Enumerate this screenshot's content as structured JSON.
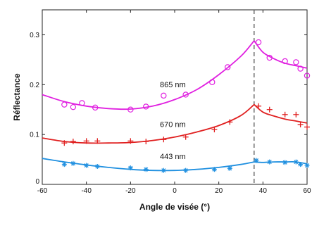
{
  "chart_data": {
    "type": "scatter",
    "title": "",
    "xlabel": "Angle de visée (°)",
    "ylabel": "Réflectance",
    "xlim": [
      -60,
      60
    ],
    "ylim": [
      0,
      0.35
    ],
    "xticks": [
      -60,
      -40,
      -20,
      0,
      20,
      40,
      60
    ],
    "yticks": [
      0.1,
      0.2,
      0.3
    ],
    "xtick_labels": [
      "-60",
      "-40",
      "-20",
      "0",
      "20",
      "40",
      "60"
    ],
    "ytick_labels": [
      "0.1",
      "0.2",
      "0.3"
    ],
    "y_zero_label": "0",
    "grid": false,
    "legend": "none",
    "reference_line_x": 36,
    "series": [
      {
        "name": "865 nm",
        "color": "#e020e0",
        "marker": "circle",
        "points": [
          [
            -50,
            0.16
          ],
          [
            -46,
            0.155
          ],
          [
            -42,
            0.163
          ],
          [
            -36,
            0.154
          ],
          [
            -20,
            0.15
          ],
          [
            -13,
            0.156
          ],
          [
            -5,
            0.178
          ],
          [
            5,
            0.18
          ],
          [
            17,
            0.205
          ],
          [
            24,
            0.235
          ],
          [
            38,
            0.285
          ],
          [
            43,
            0.254
          ],
          [
            50,
            0.247
          ],
          [
            55,
            0.245
          ],
          [
            57,
            0.232
          ],
          [
            60,
            0.218
          ]
        ],
        "fit": [
          [
            -60,
            0.18
          ],
          [
            -50,
            0.166
          ],
          [
            -40,
            0.157
          ],
          [
            -30,
            0.152
          ],
          [
            -20,
            0.151
          ],
          [
            -10,
            0.157
          ],
          [
            0,
            0.17
          ],
          [
            10,
            0.19
          ],
          [
            20,
            0.22
          ],
          [
            30,
            0.257
          ],
          [
            36,
            0.288
          ],
          [
            40,
            0.265
          ],
          [
            45,
            0.252
          ],
          [
            50,
            0.243
          ],
          [
            55,
            0.238
          ],
          [
            60,
            0.233
          ]
        ]
      },
      {
        "name": "670 nm",
        "color": "#e02020",
        "marker": "plus",
        "points": [
          [
            -50,
            0.083
          ],
          [
            -46,
            0.086
          ],
          [
            -40,
            0.087
          ],
          [
            -35,
            0.087
          ],
          [
            -20,
            0.087
          ],
          [
            -13,
            0.086
          ],
          [
            -5,
            0.09
          ],
          [
            5,
            0.095
          ],
          [
            18,
            0.11
          ],
          [
            25,
            0.125
          ],
          [
            38,
            0.157
          ],
          [
            43,
            0.15
          ],
          [
            50,
            0.14
          ],
          [
            55,
            0.14
          ],
          [
            57,
            0.12
          ],
          [
            60,
            0.115
          ]
        ],
        "fit": [
          [
            -60,
            0.093
          ],
          [
            -50,
            0.086
          ],
          [
            -40,
            0.083
          ],
          [
            -30,
            0.083
          ],
          [
            -20,
            0.084
          ],
          [
            -10,
            0.088
          ],
          [
            0,
            0.095
          ],
          [
            10,
            0.105
          ],
          [
            20,
            0.118
          ],
          [
            30,
            0.138
          ],
          [
            36,
            0.16
          ],
          [
            40,
            0.145
          ],
          [
            45,
            0.137
          ],
          [
            50,
            0.131
          ],
          [
            55,
            0.127
          ],
          [
            60,
            0.123
          ]
        ]
      },
      {
        "name": "443 nm",
        "color": "#2090e0",
        "marker": "asterisk",
        "points": [
          [
            -50,
            0.04
          ],
          [
            -46,
            0.042
          ],
          [
            -40,
            0.038
          ],
          [
            -35,
            0.036
          ],
          [
            -20,
            0.033
          ],
          [
            -13,
            0.03
          ],
          [
            -5,
            0.028
          ],
          [
            5,
            0.028
          ],
          [
            18,
            0.03
          ],
          [
            25,
            0.032
          ],
          [
            37,
            0.048
          ],
          [
            43,
            0.045
          ],
          [
            50,
            0.044
          ],
          [
            55,
            0.045
          ],
          [
            57,
            0.04
          ],
          [
            60,
            0.038
          ]
        ],
        "fit": [
          [
            -60,
            0.052
          ],
          [
            -50,
            0.045
          ],
          [
            -40,
            0.039
          ],
          [
            -30,
            0.034
          ],
          [
            -20,
            0.03
          ],
          [
            -10,
            0.028
          ],
          [
            0,
            0.028
          ],
          [
            10,
            0.03
          ],
          [
            20,
            0.034
          ],
          [
            30,
            0.04
          ],
          [
            36,
            0.045
          ],
          [
            40,
            0.044
          ],
          [
            45,
            0.045
          ],
          [
            50,
            0.045
          ],
          [
            55,
            0.045
          ],
          [
            60,
            0.041
          ]
        ]
      }
    ]
  }
}
